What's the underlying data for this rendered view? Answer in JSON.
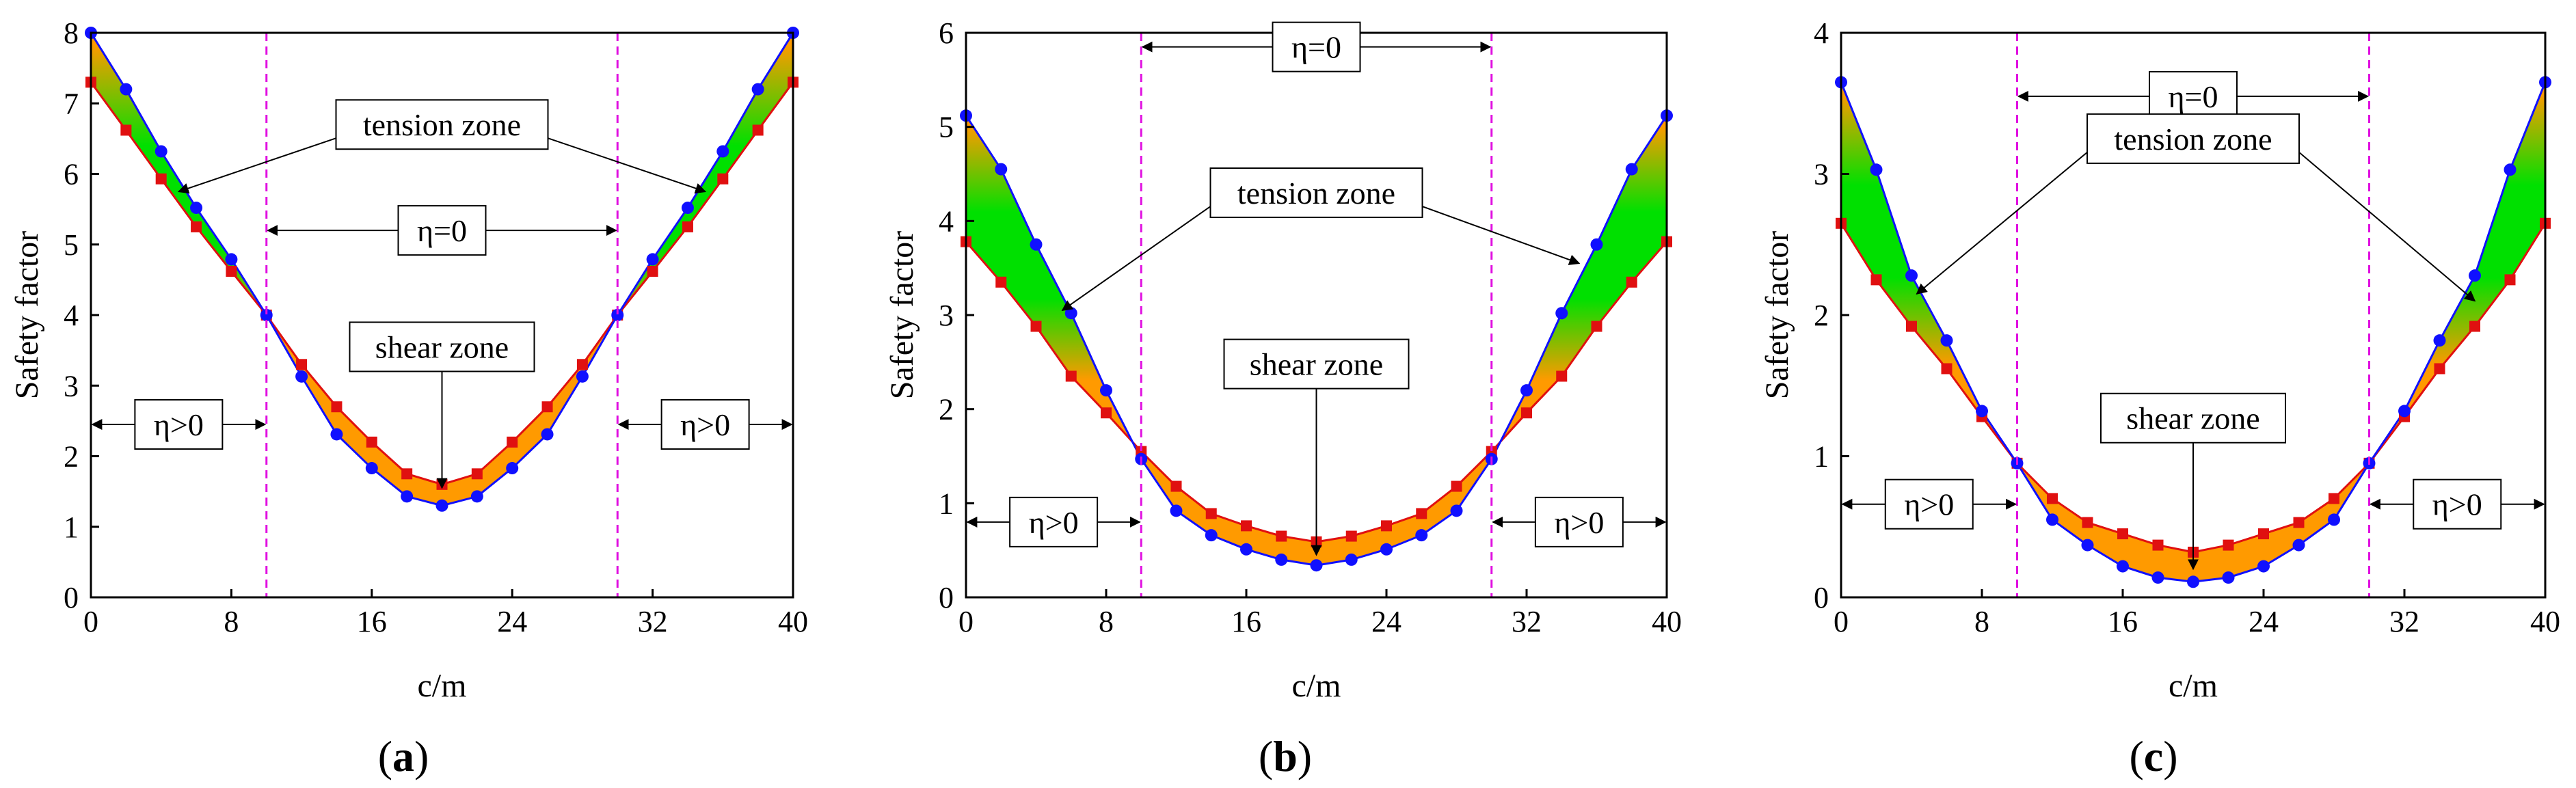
{
  "figure": {
    "legend_labels": {
      "tension": "tension zone",
      "shear": "shear zone",
      "eta_zero": "η=0",
      "eta_pos": "η>0"
    }
  },
  "chart_data": [
    {
      "type": "line",
      "panel": "a",
      "caption_open": "(",
      "caption_letter": "a",
      "caption_close": ")",
      "xlabel": "c/m",
      "ylabel": "Safety  factor",
      "xlim": [
        0,
        40
      ],
      "ylim": [
        0,
        8
      ],
      "xticks": [
        0,
        8,
        16,
        24,
        32,
        40
      ],
      "xtick_labels": [
        "0",
        "8",
        "16",
        "24",
        "32",
        "40"
      ],
      "yticks": [
        0,
        1,
        2,
        3,
        4,
        5,
        6,
        7,
        8
      ],
      "ytick_labels": [
        "0",
        "1",
        "2",
        "3",
        "4",
        "5",
        "6",
        "7",
        "8"
      ],
      "boundaries": [
        10,
        30
      ],
      "colors": {
        "blue": "#1010ff",
        "red": "#e01010",
        "orange": "#ff9a00",
        "green": "#00e000",
        "magenta": "#e010e0"
      },
      "series": [
        {
          "name": "blue",
          "marker": "circle",
          "x": [
            0,
            2,
            4,
            6,
            8,
            10,
            12,
            14,
            16,
            18,
            20,
            22,
            24,
            26,
            28,
            30,
            32,
            34,
            36,
            38,
            40
          ],
          "y": [
            8.0,
            7.2,
            6.32,
            5.52,
            4.79,
            4.0,
            3.13,
            2.31,
            1.83,
            1.43,
            1.3,
            1.43,
            1.83,
            2.31,
            3.13,
            4.0,
            4.79,
            5.52,
            6.32,
            7.2,
            8.0
          ]
        },
        {
          "name": "red",
          "marker": "square",
          "x": [
            0,
            2,
            4,
            6,
            8,
            10,
            12,
            14,
            16,
            18,
            20,
            22,
            24,
            26,
            28,
            30,
            32,
            34,
            36,
            38,
            40
          ],
          "y": [
            7.3,
            6.62,
            5.93,
            5.25,
            4.62,
            4.0,
            3.3,
            2.7,
            2.2,
            1.75,
            1.6,
            1.75,
            2.2,
            2.7,
            3.3,
            4.0,
            4.62,
            5.25,
            5.93,
            6.62,
            7.3
          ]
        }
      ],
      "annotations": {
        "tension": {
          "text": "tension zone",
          "x": 20,
          "y": 6.7
        },
        "tension_arrows": [
          [
            5.0,
            5.75
          ],
          [
            35.0,
            5.75
          ]
        ],
        "eta0": {
          "text": "η=0",
          "x": 20,
          "y": 5.2,
          "span": [
            10,
            30
          ]
        },
        "shear": {
          "text": "shear zone",
          "x": 20,
          "y": 3.55,
          "tip": [
            20,
            1.55
          ]
        },
        "eta_pos": [
          {
            "text": "η>0",
            "x": 5,
            "y": 2.45,
            "span": [
              0,
              10
            ]
          },
          {
            "text": "η>0",
            "x": 35,
            "y": 2.45,
            "span": [
              30,
              40
            ]
          }
        ]
      }
    },
    {
      "type": "line",
      "panel": "b",
      "caption_open": "(",
      "caption_letter": "b",
      "caption_close": ")",
      "xlabel": "c/m",
      "ylabel": "Safety  factor",
      "xlim": [
        0,
        40
      ],
      "ylim": [
        0,
        6
      ],
      "xticks": [
        0,
        8,
        16,
        24,
        32,
        40
      ],
      "xtick_labels": [
        "0",
        "8",
        "16",
        "24",
        "32",
        "40"
      ],
      "yticks": [
        0,
        1,
        2,
        3,
        4,
        5,
        6
      ],
      "ytick_labels": [
        "0",
        "1",
        "2",
        "3",
        "4",
        "5",
        "6"
      ],
      "boundaries": [
        10,
        30
      ],
      "colors": {
        "blue": "#1010ff",
        "red": "#e01010",
        "orange": "#ff9a00",
        "green": "#00e000",
        "magenta": "#e010e0"
      },
      "series": [
        {
          "name": "blue",
          "marker": "circle",
          "x": [
            0,
            2,
            4,
            6,
            8,
            10,
            12,
            14,
            16,
            18,
            20,
            22,
            24,
            26,
            28,
            30,
            32,
            34,
            36,
            38,
            40
          ],
          "y": [
            5.12,
            4.55,
            3.75,
            3.02,
            2.2,
            1.47,
            0.92,
            0.66,
            0.51,
            0.4,
            0.34,
            0.4,
            0.51,
            0.66,
            0.92,
            1.47,
            2.2,
            3.02,
            3.75,
            4.55,
            5.12
          ]
        },
        {
          "name": "red",
          "marker": "square",
          "x": [
            0,
            2,
            4,
            6,
            8,
            10,
            12,
            14,
            16,
            18,
            20,
            22,
            24,
            26,
            28,
            30,
            32,
            34,
            36,
            38,
            40
          ],
          "y": [
            3.78,
            3.35,
            2.88,
            2.35,
            1.96,
            1.55,
            1.18,
            0.89,
            0.76,
            0.65,
            0.59,
            0.65,
            0.76,
            0.89,
            1.18,
            1.55,
            1.96,
            2.35,
            2.88,
            3.35,
            3.78
          ]
        }
      ],
      "annotations": {
        "tension": {
          "text": "tension zone",
          "x": 20,
          "y": 4.3
        },
        "tension_arrows": [
          [
            5.5,
            3.05
          ],
          [
            35.0,
            3.55
          ]
        ],
        "eta0": {
          "text": "η=0",
          "x": 20,
          "y": 5.85,
          "span": [
            10,
            30
          ]
        },
        "shear": {
          "text": "shear zone",
          "x": 20,
          "y": 2.48,
          "tip": [
            20,
            0.45
          ]
        },
        "eta_pos": [
          {
            "text": "η>0",
            "x": 5,
            "y": 0.8,
            "span": [
              0,
              10
            ]
          },
          {
            "text": "η>0",
            "x": 35,
            "y": 0.8,
            "span": [
              30,
              40
            ]
          }
        ]
      }
    },
    {
      "type": "line",
      "panel": "c",
      "caption_open": "(",
      "caption_letter": "c",
      "caption_close": ")",
      "xlabel": "c/m",
      "ylabel": "Safety  factor",
      "xlim": [
        0,
        40
      ],
      "ylim": [
        0,
        4
      ],
      "xticks": [
        0,
        8,
        16,
        24,
        32,
        40
      ],
      "xtick_labels": [
        "0",
        "8",
        "16",
        "24",
        "32",
        "40"
      ],
      "yticks": [
        0,
        1,
        2,
        3,
        4
      ],
      "ytick_labels": [
        "0",
        "1",
        "2",
        "3",
        "4"
      ],
      "boundaries": [
        10,
        30
      ],
      "colors": {
        "blue": "#1010ff",
        "red": "#e01010",
        "orange": "#ff9a00",
        "green": "#00e000",
        "magenta": "#e010e0"
      },
      "series": [
        {
          "name": "blue",
          "marker": "circle",
          "x": [
            0,
            2,
            4,
            6,
            8,
            10,
            12,
            14,
            16,
            18,
            20,
            22,
            24,
            26,
            28,
            30,
            32,
            34,
            36,
            38,
            40
          ],
          "y": [
            3.65,
            3.03,
            2.28,
            1.82,
            1.32,
            0.95,
            0.55,
            0.37,
            0.22,
            0.14,
            0.11,
            0.14,
            0.22,
            0.37,
            0.55,
            0.95,
            1.32,
            1.82,
            2.28,
            3.03,
            3.65
          ]
        },
        {
          "name": "red",
          "marker": "square",
          "x": [
            0,
            2,
            4,
            6,
            8,
            10,
            12,
            14,
            16,
            18,
            20,
            22,
            24,
            26,
            28,
            30,
            32,
            34,
            36,
            38,
            40
          ],
          "y": [
            2.65,
            2.25,
            1.92,
            1.62,
            1.28,
            0.95,
            0.7,
            0.53,
            0.45,
            0.37,
            0.32,
            0.37,
            0.45,
            0.53,
            0.7,
            0.95,
            1.28,
            1.62,
            1.92,
            2.25,
            2.65
          ]
        }
      ],
      "annotations": {
        "tension": {
          "text": "tension zone",
          "x": 20,
          "y": 3.25
        },
        "tension_arrows": [
          [
            4.3,
            2.15
          ],
          [
            36.0,
            2.1
          ]
        ],
        "eta0": {
          "text": "η=0",
          "x": 20,
          "y": 3.55,
          "span": [
            10,
            30
          ]
        },
        "shear": {
          "text": "shear zone",
          "x": 20,
          "y": 1.27,
          "tip": [
            20,
            0.2
          ]
        },
        "eta_pos": [
          {
            "text": "η>0",
            "x": 5,
            "y": 0.66,
            "span": [
              0,
              10
            ]
          },
          {
            "text": "η>0",
            "x": 35,
            "y": 0.66,
            "span": [
              30,
              40
            ]
          }
        ]
      }
    }
  ]
}
